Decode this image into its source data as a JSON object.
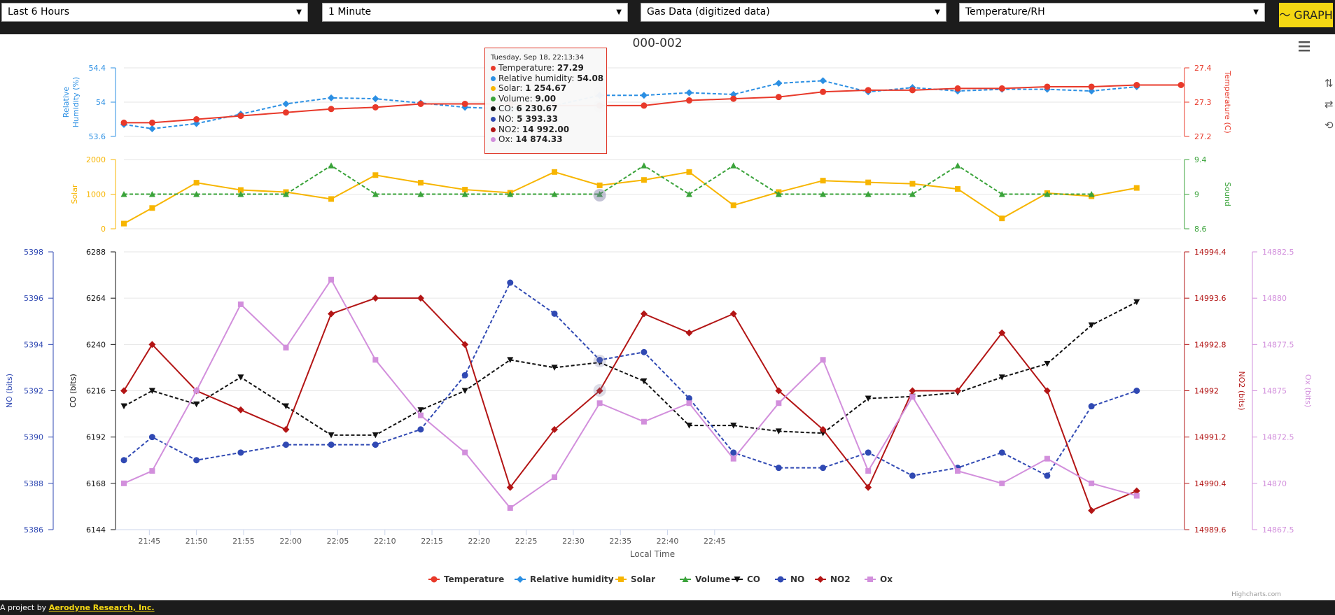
{
  "controls": {
    "time_range": "Last 6 Hours",
    "interval": "1 Minute",
    "data_source": "Gas Data (digitized data)",
    "graph_type": "Temperature/RH",
    "graph_button": "GRAPH",
    "graph_icon": "chart-line-icon"
  },
  "colors": {
    "temperature": "#e8392a",
    "humidity": "#2b8fe3",
    "solar": "#f7b500",
    "volume": "#3aa33a",
    "co": "#111111",
    "no": "#3049b3",
    "no2": "#b31515",
    "ox": "#d28fdc"
  },
  "tooltip": {
    "header": "Tuesday, Sep 18, 22:13:34",
    "rows": [
      {
        "label": "Temperature",
        "value": "27.29",
        "color": "#e8392a"
      },
      {
        "label": "Relative humidity",
        "value": "54.08",
        "color": "#2b8fe3"
      },
      {
        "label": "Solar",
        "value": "1 254.67",
        "color": "#f7b500"
      },
      {
        "label": "Volume",
        "value": "9.00",
        "color": "#3aa33a"
      },
      {
        "label": "CO",
        "value": "6 230.67",
        "color": "#111111"
      },
      {
        "label": "NO",
        "value": "5 393.33",
        "color": "#3049b3"
      },
      {
        "label": "NO2",
        "value": "14 992.00",
        "color": "#b31515"
      },
      {
        "label": "Ox",
        "value": "14 874.33",
        "color": "#d28fdc"
      }
    ]
  },
  "footer": {
    "prefix": "A project by ",
    "link": "Aerodyne Research, Inc."
  },
  "chart_data": {
    "type": "line",
    "title": "000-002",
    "credits": "Highcharts.com",
    "xlabel": "Local Time",
    "x_ticks": [
      "21:45",
      "21:50",
      "21:55",
      "22:00",
      "22:05",
      "22:10",
      "22:15",
      "22:20",
      "22:25",
      "22:30",
      "22:35",
      "22:40",
      "22:45"
    ],
    "x_tick_values": [
      105,
      110,
      115,
      120,
      125,
      130,
      135,
      140,
      145,
      150,
      155,
      160,
      165
    ],
    "x": [
      102.3,
      105.3,
      110.0,
      114.7,
      119.5,
      124.3,
      129.0,
      133.8,
      138.5,
      143.3,
      148.0,
      152.8,
      157.5,
      162.3,
      167.0,
      171.8,
      176.5,
      181.3,
      186.0,
      190.8,
      195.5,
      200.3,
      205.0,
      209.8,
      214.5
    ],
    "legend": [
      "Temperature",
      "Relative humidity",
      "Solar",
      "Volume",
      "CO",
      "NO",
      "NO2",
      "Ox"
    ],
    "panels": [
      {
        "name": "panel-top",
        "y_left": {
          "label": "Relative Humidity (%)",
          "ticks": [
            "53.6",
            "54",
            "54.4"
          ],
          "min": 53.6,
          "max": 54.4
        },
        "y_right": {
          "label": "Temperature (C)",
          "ticks": [
            "27.2",
            "27.3",
            "27.4"
          ],
          "min": 27.2,
          "max": 27.4
        },
        "series": [
          {
            "name": "Relative humidity",
            "axis": "left",
            "style": "dashed-diamond",
            "color": "#2b8fe3",
            "values": [
              53.74,
              53.69,
              53.75,
              53.86,
              53.98,
              54.05,
              54.04,
              53.99,
              53.94,
              53.92,
              53.96,
              54.08,
              54.08,
              54.11,
              54.09,
              54.22,
              54.25,
              54.12,
              54.17,
              54.13,
              54.15,
              54.15,
              54.13,
              54.18,
              null
            ]
          },
          {
            "name": "Temperature",
            "axis": "right",
            "style": "solid-circle",
            "color": "#e8392a",
            "values": [
              27.24,
              27.24,
              27.25,
              27.26,
              27.27,
              27.28,
              27.285,
              27.295,
              27.295,
              27.295,
              27.29,
              27.29,
              27.29,
              27.305,
              27.31,
              27.315,
              27.33,
              27.335,
              27.335,
              27.34,
              27.34,
              27.345,
              27.345,
              27.35,
              27.35
            ]
          }
        ]
      },
      {
        "name": "panel-middle",
        "y_left": {
          "label": "Solar",
          "ticks": [
            "0",
            "1000",
            "2000"
          ],
          "min": 0,
          "max": 2000
        },
        "y_right": {
          "label": "Sound",
          "ticks": [
            "8.6",
            "9",
            "9.4"
          ],
          "min": 8.6,
          "max": 9.4
        },
        "series": [
          {
            "name": "Solar",
            "axis": "left",
            "style": "solid-square",
            "color": "#f7b500",
            "values": [
              150,
              600,
              1330,
              1120,
              1060,
              860,
              1550,
              1330,
              1130,
              1040,
              1640,
              1254.67,
              1410,
              1640,
              680,
              1060,
              1390,
              1340,
              1300,
              1150,
              300,
              1030,
              940,
              1180,
              null
            ]
          },
          {
            "name": "Volume",
            "axis": "right",
            "style": "dashed-triangle",
            "color": "#3aa33a",
            "values": [
              9,
              9,
              9,
              9,
              9,
              9.33,
              9,
              9,
              9,
              9,
              9,
              9,
              9.33,
              9,
              9.33,
              9,
              9,
              9,
              9,
              9.33,
              9,
              9,
              9,
              null,
              null
            ]
          }
        ]
      },
      {
        "name": "panel-bottom",
        "y_left_outer": {
          "label": "NO (bits)",
          "ticks": [
            "5386",
            "5388",
            "5390",
            "5392",
            "5394",
            "5396",
            "5398"
          ],
          "min": 5386,
          "max": 5398
        },
        "y_left": {
          "label": "CO (bits)",
          "ticks": [
            "6144",
            "6168",
            "6192",
            "6216",
            "6240",
            "6264",
            "6288"
          ],
          "min": 6144,
          "max": 6288
        },
        "y_right": {
          "label": "NO2 (bits)",
          "ticks": [
            "14989.6",
            "14990.4",
            "14991.2",
            "14992",
            "14992.8",
            "14993.6",
            "14994.4"
          ],
          "min": 14989.6,
          "max": 14994.4
        },
        "y_right_outer": {
          "label": "Ox (bits)",
          "ticks": [
            "14867.5",
            "14870",
            "14872.5",
            "14875",
            "14877.5",
            "14880",
            "14882.5"
          ],
          "min": 14867.5,
          "max": 14882.5
        },
        "series": [
          {
            "name": "CO",
            "axis": "left",
            "style": "dashed-triangle-down",
            "color": "#111111",
            "values": [
              6208,
              6216,
              6209,
              6223,
              6208,
              6193,
              6193,
              6206,
              6216,
              6232,
              6228,
              6230.67,
              6221,
              6198,
              6198,
              6195,
              6194,
              6212,
              6213,
              6215,
              6223,
              6230,
              6250,
              6262,
              null
            ]
          },
          {
            "name": "NO",
            "axis": "left_outer",
            "style": "dashed-circle",
            "color": "#3049b3",
            "values": [
              5389,
              5390,
              5389,
              5389.33,
              5389.67,
              5389.67,
              5389.67,
              5390.33,
              5392.67,
              5396.67,
              5395.33,
              5393.33,
              5393.67,
              5391.67,
              5389.33,
              5388.67,
              5388.67,
              5389.33,
              5388.33,
              5388.67,
              5389.33,
              5388.33,
              5391.33,
              5392,
              null
            ]
          },
          {
            "name": "NO2",
            "axis": "right",
            "style": "solid-diamond",
            "color": "#b31515",
            "values": [
              14992,
              14992.8,
              14992,
              14991.67,
              14991.33,
              14993.33,
              14993.6,
              14993.6,
              14992.8,
              14990.33,
              14991.33,
              14992,
              14993.33,
              14993,
              14993.33,
              14992,
              14991.33,
              14990.33,
              14992,
              14992,
              14993,
              14992,
              14989.93,
              14990.27,
              null
            ]
          },
          {
            "name": "Ox",
            "axis": "right_outer",
            "style": "solid-square",
            "color": "#d28fdc",
            "values": [
              14870,
              14870.67,
              14875,
              14879.67,
              14877.33,
              14881,
              14876.67,
              14873.67,
              14871.67,
              14868.67,
              14870.33,
              14874.33,
              14873.33,
              14874.33,
              14871.33,
              14874.33,
              14876.67,
              14870.67,
              14874.67,
              14870.67,
              14870,
              14871.33,
              14870,
              14869.33,
              null
            ]
          }
        ]
      }
    ]
  }
}
